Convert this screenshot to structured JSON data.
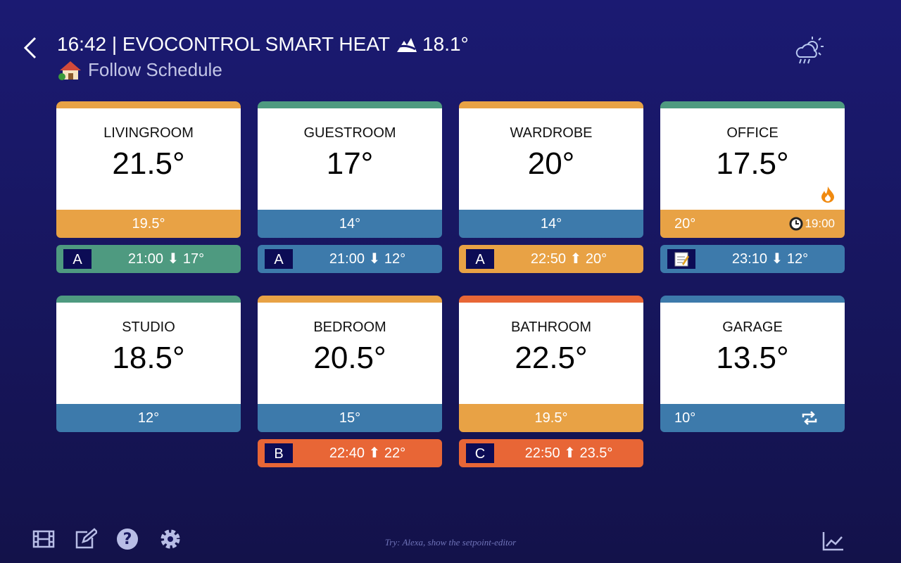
{
  "header": {
    "title": "16:42 | EVOCONTROL SMART HEAT",
    "outdoor_temp": "18.1°",
    "mode": "Follow Schedule"
  },
  "rooms": [
    {
      "name": "LIVINGROOM",
      "temp": "21.5°",
      "setpoint": "19.5°",
      "top_color": "#e8a245",
      "setpoint_color": "#e8a245",
      "schedule": {
        "badge": "A",
        "text": "21:00 ⬇ 17°",
        "color": "#4e9a80"
      }
    },
    {
      "name": "GUESTROOM",
      "temp": "17°",
      "setpoint": "14°",
      "top_color": "#4e9a80",
      "setpoint_color": "#3d7aab",
      "schedule": {
        "badge": "A",
        "text": "21:00 ⬇ 12°",
        "color": "#3d7aab"
      }
    },
    {
      "name": "WARDROBE",
      "temp": "20°",
      "setpoint": "14°",
      "top_color": "#e8a245",
      "setpoint_color": "#3d7aab",
      "schedule": {
        "badge": "A",
        "text": "22:50 ⬆ 20°",
        "color": "#e8a245"
      }
    },
    {
      "name": "OFFICE",
      "temp": "17.5°",
      "setpoint": "20°",
      "top_color": "#4e9a80",
      "setpoint_color": "#e8a245",
      "heating": true,
      "timer": "19:00",
      "schedule": {
        "text": "23:10 ⬇ 12°",
        "color": "#3d7aab"
      }
    },
    {
      "name": "STUDIO",
      "temp": "18.5°",
      "setpoint": "12°",
      "top_color": "#4e9a80",
      "setpoint_color": "#3d7aab"
    },
    {
      "name": "BEDROOM",
      "temp": "20.5°",
      "setpoint": "15°",
      "top_color": "#e8a245",
      "setpoint_color": "#3d7aab",
      "schedule": {
        "badge": "B",
        "text": "22:40 ⬆ 22°",
        "color": "#e86636"
      }
    },
    {
      "name": "BATHROOM",
      "temp": "22.5°",
      "setpoint": "19.5°",
      "top_color": "#e86636",
      "setpoint_color": "#e8a245",
      "schedule": {
        "badge": "C",
        "text": "22:50 ⬆ 23.5°",
        "color": "#e86636"
      }
    },
    {
      "name": "GARAGE",
      "temp": "13.5°",
      "setpoint": "10°",
      "top_color": "#3d7aab",
      "setpoint_color": "#3d7aab",
      "repeat": true
    }
  ],
  "footer": {
    "hint": "Try: Alexa, show the setpoint-editor"
  }
}
